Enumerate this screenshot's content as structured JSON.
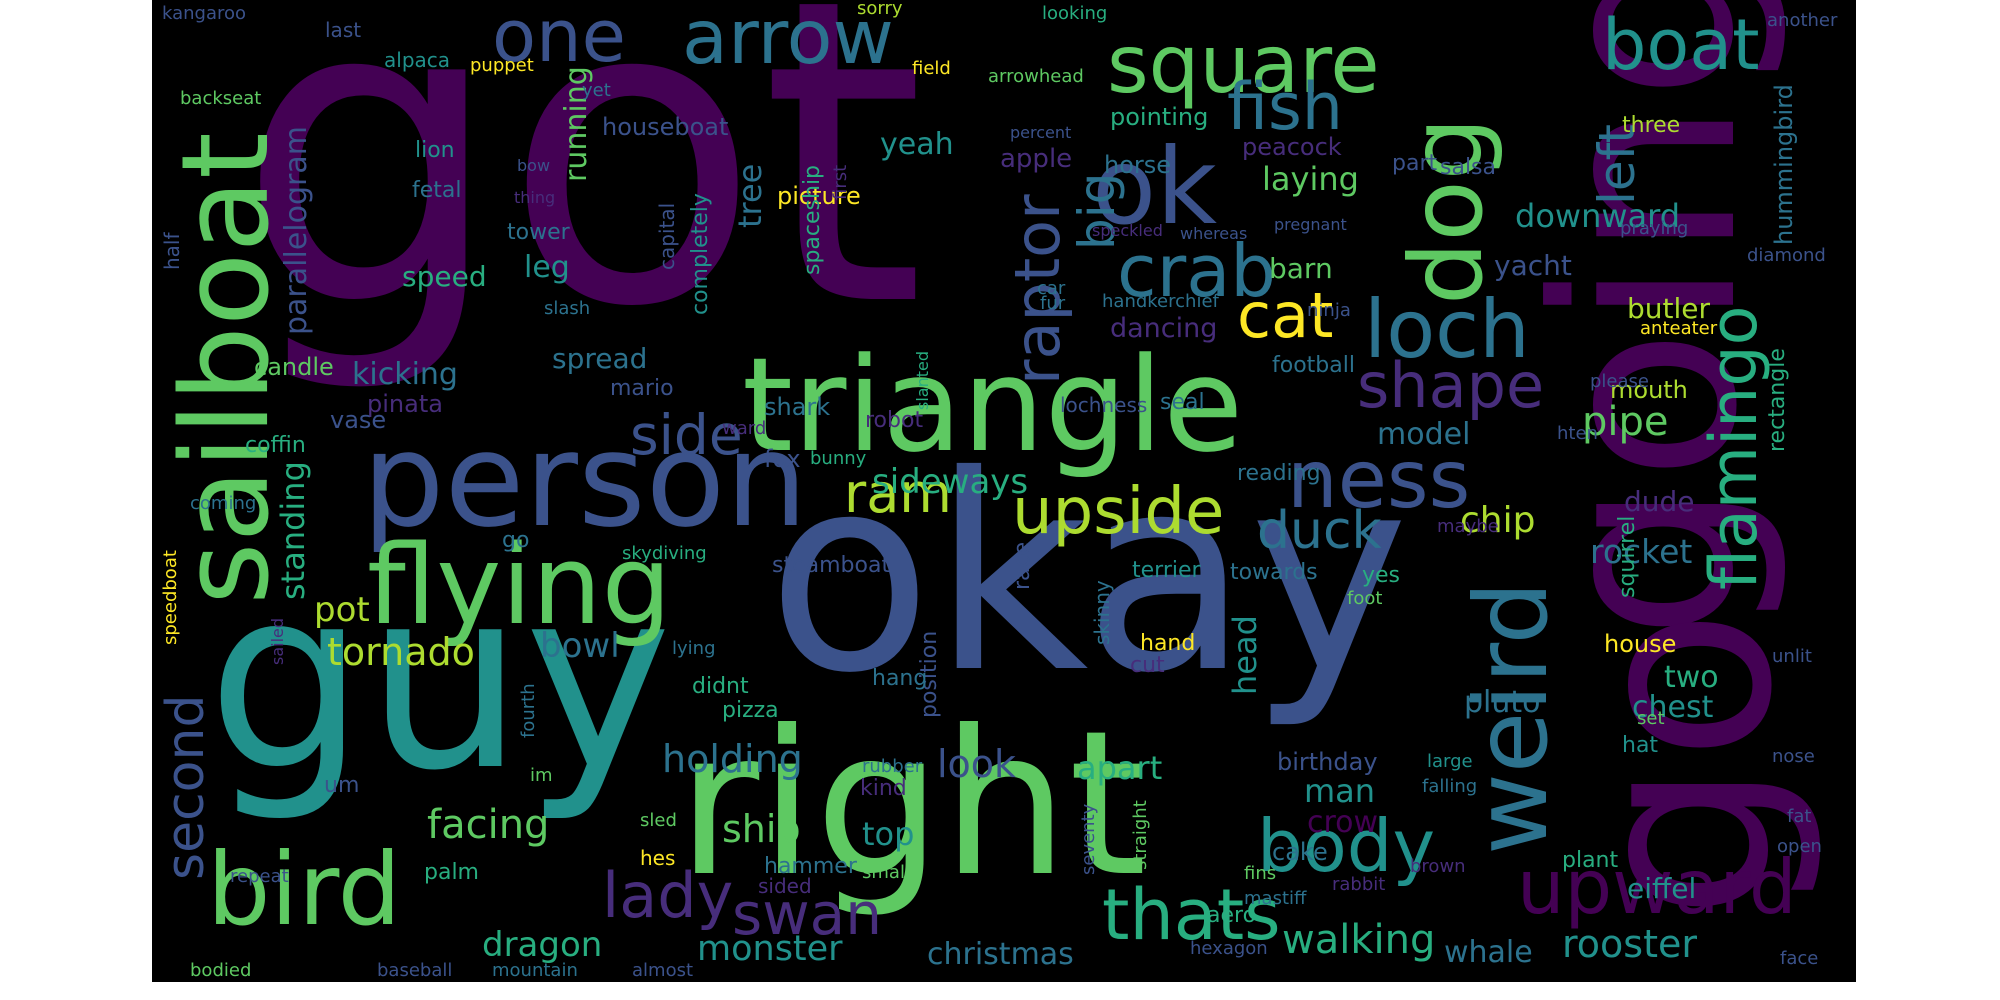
{
  "palette": {
    "panel_bg": "#000000",
    "page_bg": "#ffffff",
    "dark_purple": "#440154",
    "indigo": "#472d7b",
    "slate_blue": "#3b528b",
    "steel_blue": "#2c728e",
    "teal": "#21918c",
    "green_teal": "#28ae80",
    "green": "#5ec962",
    "lime": "#addc30",
    "yellow": "#fde725"
  },
  "words": [
    {
      "text": "got",
      "color": "#440154"
    },
    {
      "text": "okay",
      "color": "#3b528b"
    },
    {
      "text": "guy",
      "color": "#21918c"
    },
    {
      "text": "going",
      "color": "#440154"
    },
    {
      "text": "go",
      "color": "#440154"
    },
    {
      "text": "right",
      "color": "#5ec962"
    },
    {
      "text": "triangle",
      "color": "#5ec962"
    },
    {
      "text": "person",
      "color": "#3b528b"
    },
    {
      "text": "sailboat",
      "color": "#5ec962"
    },
    {
      "text": "flying",
      "color": "#5ec962"
    },
    {
      "text": "bird",
      "color": "#5ec962"
    },
    {
      "text": "dog",
      "color": "#5ec962"
    },
    {
      "text": "weird",
      "color": "#2c728e"
    },
    {
      "text": "square",
      "color": "#5ec962"
    },
    {
      "text": "ok",
      "color": "#3b528b"
    },
    {
      "text": "arrow",
      "color": "#2c728e"
    },
    {
      "text": "one",
      "color": "#3b528b"
    },
    {
      "text": "boat",
      "color": "#21918c"
    },
    {
      "text": "loch",
      "color": "#2c728e"
    },
    {
      "text": "ness",
      "color": "#3b528b"
    },
    {
      "text": "crab",
      "color": "#2c728e"
    },
    {
      "text": "fish",
      "color": "#2c728e"
    },
    {
      "text": "flamingo",
      "color": "#28ae80"
    },
    {
      "text": "upward",
      "color": "#440154"
    },
    {
      "text": "body",
      "color": "#21918c"
    },
    {
      "text": "thats",
      "color": "#28ae80"
    },
    {
      "text": "upside",
      "color": "#addc30"
    },
    {
      "text": "shape",
      "color": "#472d7b"
    },
    {
      "text": "cat",
      "color": "#fde725"
    },
    {
      "text": "raptor",
      "color": "#3b528b"
    },
    {
      "text": "lady",
      "color": "#472d7b"
    },
    {
      "text": "swan",
      "color": "#472d7b"
    },
    {
      "text": "side",
      "color": "#3b528b"
    },
    {
      "text": "ram",
      "color": "#addc30"
    },
    {
      "text": "duck",
      "color": "#2c728e"
    },
    {
      "text": "left",
      "color": "#2c728e"
    },
    {
      "text": "second",
      "color": "#3b528b"
    },
    {
      "text": "big",
      "color": "#2c728e"
    },
    {
      "text": "walking",
      "color": "#28ae80"
    },
    {
      "text": "rooster",
      "color": "#21918c"
    },
    {
      "text": "monster",
      "color": "#21918c"
    },
    {
      "text": "dragon",
      "color": "#28ae80"
    },
    {
      "text": "christmas",
      "color": "#2c728e"
    },
    {
      "text": "whale",
      "color": "#2c728e"
    },
    {
      "text": "facing",
      "color": "#5ec962"
    },
    {
      "text": "holding",
      "color": "#2c728e"
    },
    {
      "text": "ship",
      "color": "#5ec962"
    },
    {
      "text": "top",
      "color": "#21918c"
    },
    {
      "text": "look",
      "color": "#3b528b"
    },
    {
      "text": "apart",
      "color": "#28ae80"
    },
    {
      "text": "man",
      "color": "#21918c"
    },
    {
      "text": "crow",
      "color": "#440154"
    },
    {
      "text": "pipe",
      "color": "#5ec962"
    },
    {
      "text": "chip",
      "color": "#addc30"
    },
    {
      "text": "rocket",
      "color": "#2c728e"
    },
    {
      "text": "chest",
      "color": "#21918c"
    },
    {
      "text": "two",
      "color": "#28ae80"
    },
    {
      "text": "head",
      "color": "#21918c"
    },
    {
      "text": "pluto",
      "color": "#2c728e"
    },
    {
      "text": "tornado",
      "color": "#addc30"
    },
    {
      "text": "bowl",
      "color": "#2c728e"
    },
    {
      "text": "pot",
      "color": "#addc30"
    },
    {
      "text": "standing",
      "color": "#28ae80"
    },
    {
      "text": "sideways",
      "color": "#28ae80"
    },
    {
      "text": "kicking",
      "color": "#2c728e"
    },
    {
      "text": "parallelogram",
      "color": "#3b528b"
    },
    {
      "text": "running",
      "color": "#5ec962"
    },
    {
      "text": "tree",
      "color": "#2c728e"
    },
    {
      "text": "leg",
      "color": "#21918c"
    },
    {
      "text": "speed",
      "color": "#28ae80"
    },
    {
      "text": "downward",
      "color": "#21918c"
    },
    {
      "text": "laying",
      "color": "#5ec962"
    },
    {
      "text": "barn",
      "color": "#5ec962"
    },
    {
      "text": "yacht",
      "color": "#3b528b"
    },
    {
      "text": "butler",
      "color": "#addc30"
    },
    {
      "text": "model",
      "color": "#2c728e"
    },
    {
      "text": "dancing",
      "color": "#472d7b"
    },
    {
      "text": "spread",
      "color": "#2c728e"
    },
    {
      "text": "yeah",
      "color": "#21918c"
    },
    {
      "text": "apple",
      "color": "#472d7b"
    },
    {
      "text": "picture",
      "color": "#fde725"
    },
    {
      "text": "houseboat",
      "color": "#3b528b"
    },
    {
      "text": "pointing",
      "color": "#28ae80"
    },
    {
      "text": "horse",
      "color": "#2c728e"
    },
    {
      "text": "peacock",
      "color": "#472d7b"
    },
    {
      "text": "hummingbird",
      "color": "#2c728e"
    },
    {
      "text": "three",
      "color": "#addc30"
    },
    {
      "text": "salsa",
      "color": "#3b528b"
    },
    {
      "text": "part",
      "color": "#3b528b"
    },
    {
      "text": "house",
      "color": "#fde725"
    },
    {
      "text": "dude",
      "color": "#472d7b"
    },
    {
      "text": "mouth",
      "color": "#addc30"
    },
    {
      "text": "hat",
      "color": "#21918c"
    },
    {
      "text": "eiffel",
      "color": "#21918c"
    },
    {
      "text": "hand",
      "color": "#fde725"
    },
    {
      "text": "cake",
      "color": "#2c728e"
    },
    {
      "text": "birthday",
      "color": "#3b528b"
    },
    {
      "text": "towards",
      "color": "#2c728e"
    },
    {
      "text": "terrier",
      "color": "#21918c"
    },
    {
      "text": "yes",
      "color": "#28ae80"
    },
    {
      "text": "squirrel",
      "color": "#28ae80"
    },
    {
      "text": "rectangle",
      "color": "#28ae80"
    },
    {
      "text": "reading",
      "color": "#2c728e"
    },
    {
      "text": "football",
      "color": "#2c728e"
    },
    {
      "text": "seal",
      "color": "#2c728e"
    },
    {
      "text": "lochness",
      "color": "#3b528b"
    },
    {
      "text": "shark",
      "color": "#2c728e"
    },
    {
      "text": "fox",
      "color": "#3b528b"
    },
    {
      "text": "mario",
      "color": "#3b528b"
    },
    {
      "text": "robot",
      "color": "#472d7b"
    },
    {
      "text": "pinata",
      "color": "#472d7b"
    },
    {
      "text": "vase",
      "color": "#3b528b"
    },
    {
      "text": "candle",
      "color": "#5ec962"
    },
    {
      "text": "coffin",
      "color": "#28ae80"
    },
    {
      "text": "lion",
      "color": "#21918c"
    },
    {
      "text": "fetal",
      "color": "#2c728e"
    },
    {
      "text": "tower",
      "color": "#2c728e"
    },
    {
      "text": "capital",
      "color": "#3b528b"
    },
    {
      "text": "completely",
      "color": "#21918c"
    },
    {
      "text": "spaceship",
      "color": "#28ae80"
    },
    {
      "text": "hexagon",
      "color": "#3b528b"
    },
    {
      "text": "aero",
      "color": "#28ae80"
    },
    {
      "text": "steamboat",
      "color": "#3b528b"
    },
    {
      "text": "race",
      "color": "#3b528b"
    },
    {
      "text": "skinny",
      "color": "#2c728e"
    },
    {
      "text": "pizza",
      "color": "#28ae80"
    },
    {
      "text": "position",
      "color": "#3b528b"
    },
    {
      "text": "cut",
      "color": "#472d7b"
    },
    {
      "text": "hang",
      "color": "#2c728e"
    },
    {
      "text": "didnt",
      "color": "#28ae80"
    },
    {
      "text": "um",
      "color": "#3b528b"
    },
    {
      "text": "kind",
      "color": "#472d7b"
    },
    {
      "text": "palm",
      "color": "#28ae80"
    },
    {
      "text": "hammer",
      "color": "#2c728e"
    },
    {
      "text": "sided",
      "color": "#472d7b"
    },
    {
      "text": "small",
      "color": "#5ec962"
    },
    {
      "text": "hes",
      "color": "#fde725"
    },
    {
      "text": "rubber",
      "color": "#2c728e"
    },
    {
      "text": "seventy",
      "color": "#3b528b"
    },
    {
      "text": "straight",
      "color": "#5ec962"
    },
    {
      "text": "rabbit",
      "color": "#472d7b"
    },
    {
      "text": "brown",
      "color": "#472d7b"
    },
    {
      "text": "plant",
      "color": "#28ae80"
    },
    {
      "text": "fins",
      "color": "#5ec962"
    },
    {
      "text": "mastiff",
      "color": "#2c728e"
    },
    {
      "text": "large",
      "color": "#21918c"
    },
    {
      "text": "falling",
      "color": "#2c728e"
    },
    {
      "text": "foot",
      "color": "#5ec962"
    },
    {
      "text": "maybe",
      "color": "#472d7b"
    },
    {
      "text": "nose",
      "color": "#3b528b"
    },
    {
      "text": "fat",
      "color": "#3b528b"
    },
    {
      "text": "open",
      "color": "#3b528b"
    },
    {
      "text": "face",
      "color": "#3b528b"
    },
    {
      "text": "almost",
      "color": "#3b528b"
    },
    {
      "text": "mountain",
      "color": "#2c728e"
    },
    {
      "text": "baseball",
      "color": "#3b528b"
    },
    {
      "text": "bodied",
      "color": "#5ec962"
    },
    {
      "text": "repeat",
      "color": "#3b528b"
    },
    {
      "text": "speedboat",
      "color": "#fde725"
    },
    {
      "text": "sailed",
      "color": "#472d7b"
    },
    {
      "text": "coming",
      "color": "#2c728e"
    },
    {
      "text": "half",
      "color": "#3b528b"
    },
    {
      "text": "slash",
      "color": "#2c728e"
    },
    {
      "text": "fur",
      "color": "#2c728e"
    },
    {
      "text": "car",
      "color": "#2c728e"
    },
    {
      "text": "handkerchief",
      "color": "#2c728e"
    },
    {
      "text": "ninja",
      "color": "#3b528b"
    },
    {
      "text": "anteater",
      "color": "#fde725"
    },
    {
      "text": "please",
      "color": "#3b528b"
    },
    {
      "text": "hten",
      "color": "#3b528b"
    },
    {
      "text": "slanted",
      "color": "#28ae80"
    },
    {
      "text": "bunny",
      "color": "#28ae80"
    },
    {
      "text": "ward",
      "color": "#472d7b"
    },
    {
      "text": "skydiving",
      "color": "#28ae80"
    },
    {
      "text": "go",
      "color": "#2c728e"
    },
    {
      "text": "lying",
      "color": "#2c728e"
    },
    {
      "text": "fourth",
      "color": "#2c728e"
    },
    {
      "text": "im",
      "color": "#5ec962"
    },
    {
      "text": "sled",
      "color": "#5ec962"
    },
    {
      "text": "set",
      "color": "#5ec962"
    },
    {
      "text": "unlit",
      "color": "#3b528b"
    },
    {
      "text": "diamond",
      "color": "#3b528b"
    },
    {
      "text": "praying",
      "color": "#3b528b"
    },
    {
      "text": "another",
      "color": "#3b528b"
    },
    {
      "text": "kangaroo",
      "color": "#3b528b"
    },
    {
      "text": "last",
      "color": "#3b528b"
    },
    {
      "text": "alpaca",
      "color": "#21918c"
    },
    {
      "text": "puppet",
      "color": "#fde725"
    },
    {
      "text": "yet",
      "color": "#2c728e"
    },
    {
      "text": "backseat",
      "color": "#5ec962"
    },
    {
      "text": "field",
      "color": "#fde725"
    },
    {
      "text": "sorry",
      "color": "#addc30"
    },
    {
      "text": "looking",
      "color": "#28ae80"
    },
    {
      "text": "arrowhead",
      "color": "#5ec962"
    },
    {
      "text": "percent",
      "color": "#3b528b"
    },
    {
      "text": "first",
      "color": "#472d7b"
    },
    {
      "text": "bow",
      "color": "#3b528b"
    },
    {
      "text": "thing",
      "color": "#472d7b"
    },
    {
      "text": "speckled",
      "color": "#472d7b"
    },
    {
      "text": "whereas",
      "color": "#3b528b"
    },
    {
      "text": "pregnant",
      "color": "#3b528b"
    }
  ]
}
